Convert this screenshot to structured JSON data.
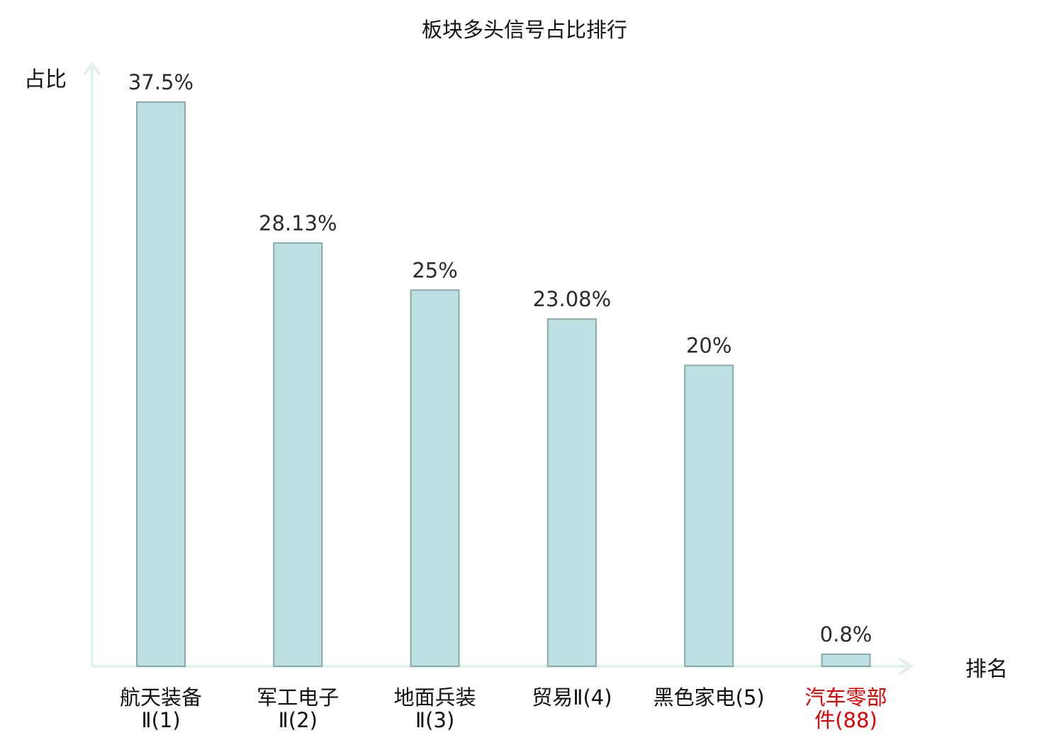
{
  "chart_data": {
    "type": "bar",
    "title": "板块多头信号占比排行",
    "ylabel": "占比",
    "xlabel": "排名",
    "ylim": [
      0,
      37.5
    ],
    "grid": false,
    "legend": "none",
    "categories": [
      {
        "lines": [
          "航天装备",
          "Ⅱ(1)"
        ],
        "highlight": false
      },
      {
        "lines": [
          "军工电子",
          "Ⅱ(2)"
        ],
        "highlight": false
      },
      {
        "lines": [
          "地面兵装",
          "Ⅱ(3)"
        ],
        "highlight": false
      },
      {
        "lines": [
          "贸易Ⅱ(4)"
        ],
        "highlight": false
      },
      {
        "lines": [
          "黑色家电(5)"
        ],
        "highlight": false
      },
      {
        "lines": [
          "汽车零部",
          "件(88)"
        ],
        "highlight": true
      }
    ],
    "values": [
      37.5,
      28.13,
      25,
      23.08,
      20,
      0.8
    ],
    "value_labels": [
      "37.5%",
      "28.13%",
      "25%",
      "23.08%",
      "20%",
      "0.8%"
    ],
    "colors": {
      "bar_fill": "#bce0e2",
      "bar_stroke": "#8aa9ad",
      "axis": "#dff2ef",
      "text": "#2b2b2b",
      "highlight_text": "#e00000"
    }
  }
}
